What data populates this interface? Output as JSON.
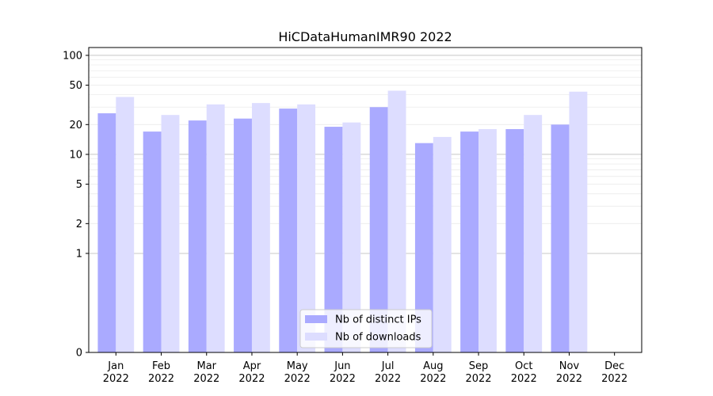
{
  "chart_data": {
    "type": "bar",
    "title": "HiCDataHumanIMR90 2022",
    "xlabel": "",
    "ylabel": "",
    "y_scale": "symlog",
    "ylim": [
      0,
      120
    ],
    "y_ticks": [
      0,
      1,
      2,
      5,
      10,
      20,
      50,
      100
    ],
    "grid": true,
    "legend_position": "bottom-center",
    "categories": [
      [
        "Jan",
        "2022"
      ],
      [
        "Feb",
        "2022"
      ],
      [
        "Mar",
        "2022"
      ],
      [
        "Apr",
        "2022"
      ],
      [
        "May",
        "2022"
      ],
      [
        "Jun",
        "2022"
      ],
      [
        "Jul",
        "2022"
      ],
      [
        "Aug",
        "2022"
      ],
      [
        "Sep",
        "2022"
      ],
      [
        "Oct",
        "2022"
      ],
      [
        "Nov",
        "2022"
      ],
      [
        "Dec",
        "2022"
      ]
    ],
    "series": [
      {
        "name": "Nb of distinct IPs",
        "color": "#aaaaff",
        "values": [
          26,
          17,
          22,
          23,
          29,
          19,
          30,
          13,
          17,
          18,
          20,
          0
        ]
      },
      {
        "name": "Nb of downloads",
        "color": "#ddddff",
        "values": [
          38,
          25,
          32,
          33,
          32,
          21,
          44,
          15,
          18,
          25,
          43,
          0
        ]
      }
    ]
  }
}
